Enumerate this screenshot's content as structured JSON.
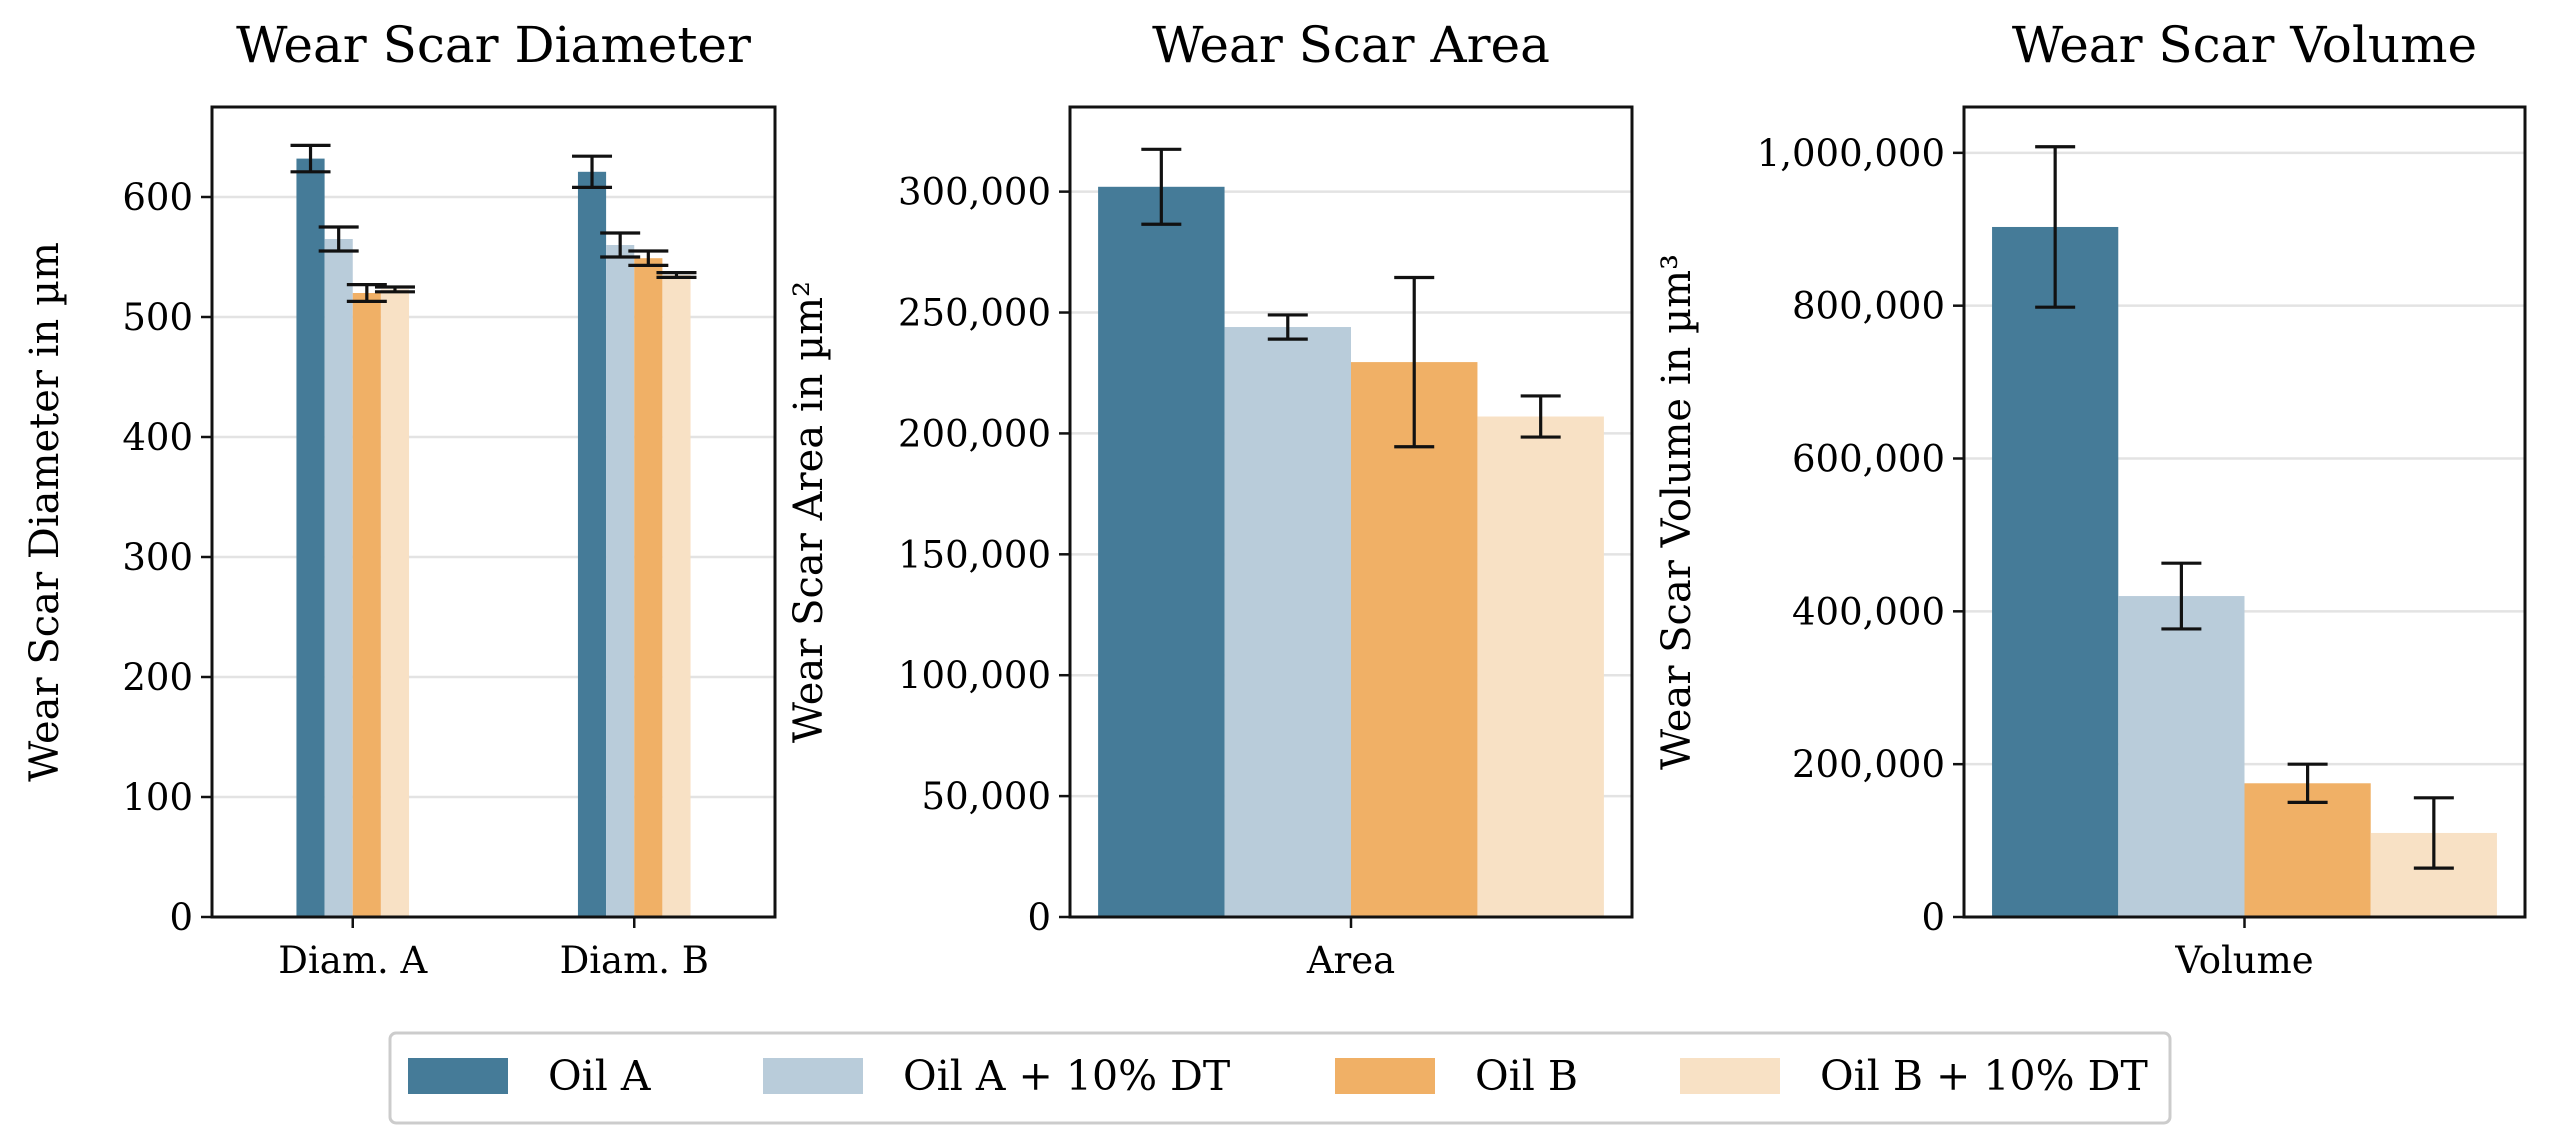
{
  "series_names": [
    "Oil A",
    "Oil A + 10% DT",
    "Oil B",
    "Oil B + 10% DT"
  ],
  "series_colors": [
    "#457b98",
    "#b9ccda",
    "#f0b066",
    "#f8e1c5"
  ],
  "chart_data": [
    {
      "type": "bar",
      "title": "Wear Scar Diameter",
      "xlabel": "",
      "ylabel": "Wear Scar Diameter in µm",
      "categories": [
        "Diam. A",
        "Diam. B"
      ],
      "ylim": [
        0,
        675
      ],
      "yticks": [
        0,
        100,
        200,
        300,
        400,
        500,
        600
      ],
      "ytick_labels": [
        "0",
        "100",
        "200",
        "300",
        "400",
        "500",
        "600"
      ],
      "grid": true,
      "series": [
        {
          "name": "Oil A",
          "values": [
            632,
            621
          ],
          "errors": [
            11,
            13
          ]
        },
        {
          "name": "Oil A + 10% DT",
          "values": [
            565,
            560
          ],
          "errors": [
            10,
            10
          ]
        },
        {
          "name": "Oil B",
          "values": [
            520,
            549
          ],
          "errors": [
            7,
            6
          ]
        },
        {
          "name": "Oil B + 10% DT",
          "values": [
            523,
            535
          ],
          "errors": [
            2,
            2
          ]
        }
      ]
    },
    {
      "type": "bar",
      "title": "Wear Scar Area",
      "xlabel": "",
      "ylabel": "Wear Scar Area in µm²",
      "categories": [
        "Area"
      ],
      "ylim": [
        0,
        335000
      ],
      "yticks": [
        0,
        50000,
        100000,
        150000,
        200000,
        250000,
        300000
      ],
      "ytick_labels": [
        "0",
        "50,000",
        "100,000",
        "150,000",
        "200,000",
        "250,000",
        "300,000"
      ],
      "grid": true,
      "series": [
        {
          "name": "Oil A",
          "values": [
            302000
          ],
          "errors": [
            15500
          ]
        },
        {
          "name": "Oil A + 10% DT",
          "values": [
            244000
          ],
          "errors": [
            5000
          ]
        },
        {
          "name": "Oil B",
          "values": [
            229500
          ],
          "errors": [
            35000
          ]
        },
        {
          "name": "Oil B + 10% DT",
          "values": [
            207000
          ],
          "errors": [
            8500
          ]
        }
      ]
    },
    {
      "type": "bar",
      "title": "Wear Scar Volume",
      "xlabel": "",
      "ylabel": "Wear Scar Volume in µm³",
      "categories": [
        "Volume"
      ],
      "ylim": [
        0,
        1060000
      ],
      "yticks": [
        0,
        200000,
        400000,
        600000,
        800000,
        1000000
      ],
      "ytick_labels": [
        "0",
        "200,000",
        "400,000",
        "600,000",
        "800,000",
        "1,000,000"
      ],
      "grid": true,
      "series": [
        {
          "name": "Oil A",
          "values": [
            903000
          ],
          "errors": [
            105000
          ]
        },
        {
          "name": "Oil A + 10% DT",
          "values": [
            420000
          ],
          "errors": [
            43000
          ]
        },
        {
          "name": "Oil B",
          "values": [
            175000
          ],
          "errors": [
            25000
          ]
        },
        {
          "name": "Oil B + 10% DT",
          "values": [
            110000
          ],
          "errors": [
            46000
          ]
        }
      ]
    }
  ],
  "legend": {
    "position": "bottom-center",
    "entries": [
      "Oil A",
      "Oil A + 10% DT",
      "Oil B",
      "Oil B + 10% DT"
    ]
  }
}
